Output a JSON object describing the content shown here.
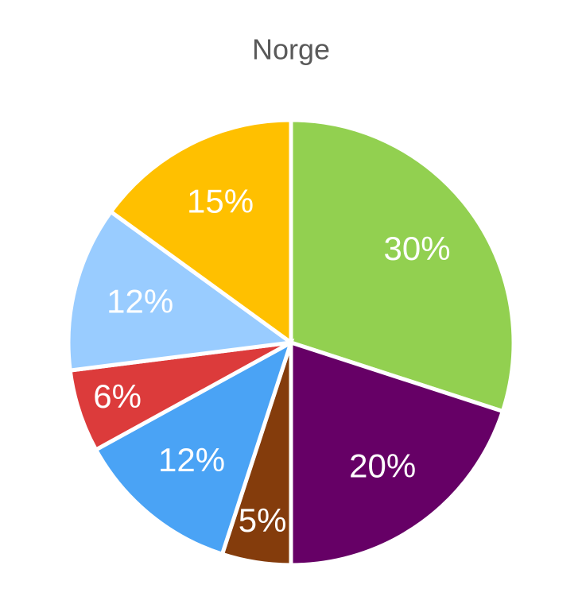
{
  "chart_data": {
    "type": "pie",
    "title": "Norge",
    "values": [
      30,
      20,
      5,
      12,
      6,
      12,
      15
    ],
    "value_labels": [
      "30%",
      "20%",
      "5%",
      "12%",
      "6%",
      "12%",
      "15%"
    ],
    "colors": [
      "#92d050",
      "#660066",
      "#843c0c",
      "#4aa3f5",
      "#dc3b3b",
      "#99ccff",
      "#ffc000"
    ]
  }
}
